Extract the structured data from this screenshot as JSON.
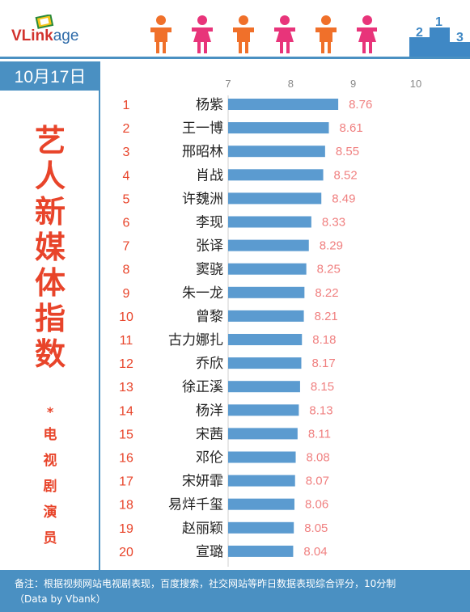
{
  "header": {
    "logo_bold": "VLink",
    "logo_rest": "age",
    "podium_labels": [
      "2",
      "1",
      "3"
    ]
  },
  "date": "10月17日",
  "title_chars": [
    "艺",
    "人",
    "新",
    "媒",
    "体",
    "指",
    "数"
  ],
  "title_separator": "*",
  "subtitle_chars": [
    "电",
    "视",
    "剧",
    "演",
    "员"
  ],
  "footer": {
    "line1": "备注：根据视频网站电视剧表现，百度搜索，社交网站等昨日数据表现综合评分，10分制",
    "line2": "（Data by Vbank）"
  },
  "colors": {
    "accent": "#4a90c2",
    "bar": "#5b9bd0",
    "value_text": "#f08080",
    "rank_text": "#e8442a",
    "title_text": "#e8442a",
    "person_orange": "#f0702a",
    "person_pink": "#e8347a"
  },
  "chart_data": {
    "type": "bar",
    "orientation": "horizontal",
    "xlim": [
      7,
      10
    ],
    "xticks": [
      7,
      8,
      9,
      10
    ],
    "ranks": [
      1,
      2,
      3,
      4,
      5,
      6,
      7,
      8,
      9,
      10,
      11,
      12,
      13,
      14,
      15,
      16,
      17,
      18,
      19,
      20
    ],
    "categories": [
      "杨紫",
      "王一博",
      "邢昭林",
      "肖战",
      "许魏洲",
      "李现",
      "张译",
      "窦骁",
      "朱一龙",
      "曾黎",
      "古力娜扎",
      "乔欣",
      "徐正溪",
      "杨洋",
      "宋茜",
      "邓伦",
      "宋妍霏",
      "易烊千玺",
      "赵丽颖",
      "宣璐"
    ],
    "values": [
      8.76,
      8.61,
      8.55,
      8.52,
      8.49,
      8.33,
      8.29,
      8.25,
      8.22,
      8.21,
      8.18,
      8.17,
      8.15,
      8.13,
      8.11,
      8.08,
      8.07,
      8.06,
      8.05,
      8.04
    ],
    "value_labels": [
      "8.76",
      "8.61",
      "8.55",
      "8.52",
      "8.49",
      "8.33",
      "8.29",
      "8.25",
      "8.22",
      "8.21",
      "8.18",
      "8.17",
      "8.15",
      "8.13",
      "8.11",
      "8.08",
      "8.07",
      "8.06",
      "8.05",
      "8.04"
    ]
  }
}
